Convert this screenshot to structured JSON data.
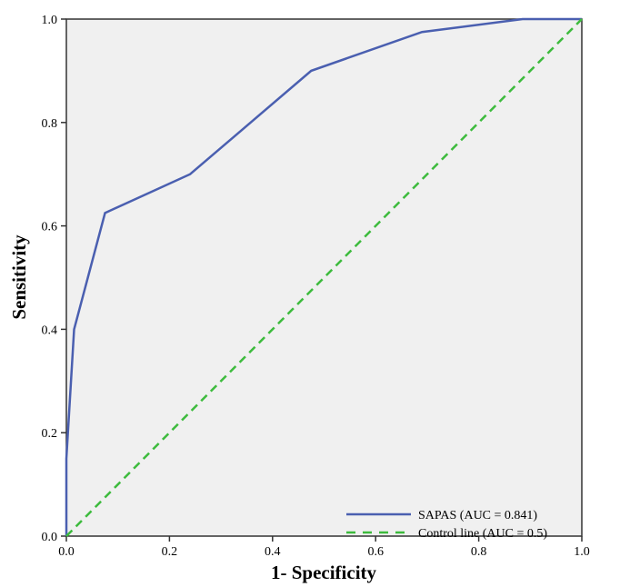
{
  "chart_data": {
    "type": "line",
    "title": "",
    "xlabel": "1- Specificity",
    "ylabel": "Sensitivity",
    "xlim": [
      0,
      1
    ],
    "ylim": [
      0,
      1
    ],
    "xticks": [
      "0.0",
      "0.2",
      "0.4",
      "0.6",
      "0.8",
      "1.0"
    ],
    "yticks": [
      "0.0",
      "0.2",
      "0.4",
      "0.6",
      "0.8",
      "1.0"
    ],
    "grid": false,
    "legend_position": "bottom-right",
    "series": [
      {
        "name": "SAPAS (AUC = 0.841)",
        "style": "solid",
        "color": "#4a5fb0",
        "x": [
          0,
          0,
          0.015,
          0.075,
          0.24,
          0.475,
          0.69,
          0.885,
          1.0
        ],
        "y": [
          0,
          0.15,
          0.4,
          0.625,
          0.7,
          0.9,
          0.975,
          1.0,
          1.0
        ]
      },
      {
        "name": "Control line (AUC = 0.5)",
        "style": "dashed",
        "color": "#3dbb3d",
        "x": [
          0,
          1
        ],
        "y": [
          0,
          1
        ]
      }
    ],
    "background": "#f0f0f0"
  }
}
